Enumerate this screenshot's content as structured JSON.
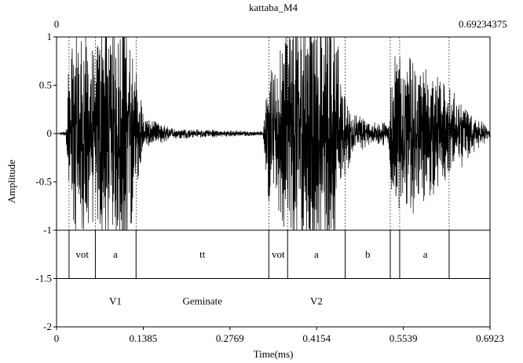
{
  "chart_data": {
    "type": "line",
    "title": "kattaba_M4",
    "xlabel": "Time(ms)",
    "ylabel": "Amplitude",
    "x_range": [
      0,
      0.6923
    ],
    "y_range": [
      -2,
      1
    ],
    "x_ticks": [
      {
        "value": 0,
        "label": "0"
      },
      {
        "value": 0.1385,
        "label": "0.1385"
      },
      {
        "value": 0.2769,
        "label": "0.2769"
      },
      {
        "value": 0.4154,
        "label": "0.4154"
      },
      {
        "value": 0.5539,
        "label": "0.5539"
      },
      {
        "value": 0.6923,
        "label": "0.6923"
      }
    ],
    "y_ticks": [
      {
        "value": 1,
        "label": "1"
      },
      {
        "value": 0.5,
        "label": "0.5"
      },
      {
        "value": 0,
        "label": "0"
      },
      {
        "value": -0.5,
        "label": "-0.5"
      },
      {
        "value": -1,
        "label": "-1"
      },
      {
        "value": -1.5,
        "label": "-1.5"
      },
      {
        "value": -2,
        "label": "-2"
      }
    ],
    "top_left_label": "0",
    "top_right_label": "0.69234375",
    "segment_boundaries": [
      0.02,
      0.062,
      0.127,
      0.339,
      0.369,
      0.461,
      0.533,
      0.548,
      0.627
    ],
    "phone_tier": {
      "y_range": [
        -1.5,
        -1
      ],
      "boundaries": [
        0.02,
        0.062,
        0.127,
        0.339,
        0.369,
        0.461,
        0.533,
        0.548,
        0.627
      ],
      "labels": [
        {
          "text": "vot",
          "t": 0.041
        },
        {
          "text": "a",
          "t": 0.094
        },
        {
          "text": "tt",
          "t": 0.233
        },
        {
          "text": "vot",
          "t": 0.354
        },
        {
          "text": "a",
          "t": 0.415
        },
        {
          "text": "b",
          "t": 0.497
        },
        {
          "text": "a",
          "t": 0.589
        }
      ]
    },
    "word_tier": {
      "y_range": [
        -2,
        -1.5
      ],
      "labels": [
        {
          "text": "V1",
          "t": 0.094
        },
        {
          "text": "Geminate",
          "t": 0.233
        },
        {
          "text": "V2",
          "t": 0.415
        }
      ]
    },
    "waveform_envelope": [
      {
        "t": 0.0,
        "amp": 0.0
      },
      {
        "t": 0.015,
        "amp": 0.02
      },
      {
        "t": 0.02,
        "amp": 0.7
      },
      {
        "t": 0.03,
        "amp": 0.95
      },
      {
        "t": 0.05,
        "amp": 0.85
      },
      {
        "t": 0.062,
        "amp": 0.6
      },
      {
        "t": 0.07,
        "amp": 1.0
      },
      {
        "t": 0.115,
        "amp": 1.0
      },
      {
        "t": 0.127,
        "amp": 0.5
      },
      {
        "t": 0.14,
        "amp": 0.12
      },
      {
        "t": 0.19,
        "amp": 0.04
      },
      {
        "t": 0.33,
        "amp": 0.015
      },
      {
        "t": 0.339,
        "amp": 0.6
      },
      {
        "t": 0.35,
        "amp": 0.6
      },
      {
        "t": 0.369,
        "amp": 1.0
      },
      {
        "t": 0.44,
        "amp": 1.0
      },
      {
        "t": 0.461,
        "amp": 0.3
      },
      {
        "t": 0.5,
        "amp": 0.08
      },
      {
        "t": 0.53,
        "amp": 0.1
      },
      {
        "t": 0.535,
        "amp": 0.5
      },
      {
        "t": 0.548,
        "amp": 0.7
      },
      {
        "t": 0.58,
        "amp": 0.55
      },
      {
        "t": 0.627,
        "amp": 0.35
      },
      {
        "t": 0.6923,
        "amp": 0.03
      }
    ]
  }
}
